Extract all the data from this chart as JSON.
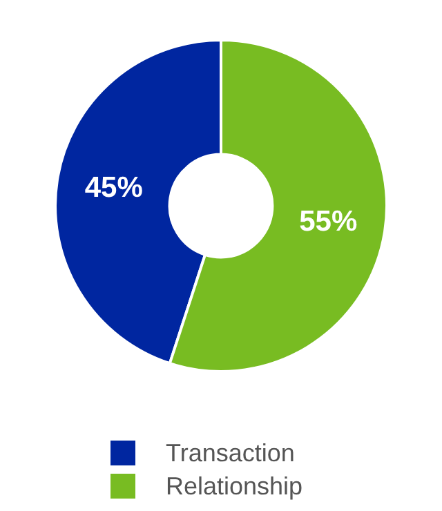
{
  "chart_data": {
    "type": "donut",
    "categories": [
      "Transaction",
      "Relationship"
    ],
    "values": [
      45,
      55
    ],
    "colors": [
      "#0026a0",
      "#78bc22"
    ],
    "value_labels": [
      "45%",
      "55%"
    ],
    "legend": "bottom"
  }
}
